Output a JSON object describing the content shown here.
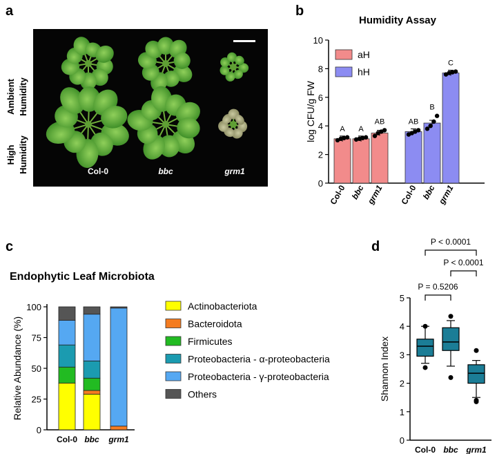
{
  "panels": {
    "a": {
      "letter": "a",
      "row_labels": [
        "Ambient\nHumidity",
        "High\nHumidity"
      ],
      "genotypes": [
        "Col-0",
        "bbc",
        "grm1"
      ],
      "scale_bar": true
    },
    "b": {
      "letter": "b",
      "title": "Humidity Assay"
    },
    "c": {
      "letter": "c",
      "title": "Endophytic Leaf Microbiota"
    },
    "d": {
      "letter": "d",
      "comparisons": [
        {
          "label": "P < 0.0001",
          "from": "Col-0",
          "to": "grm1"
        },
        {
          "label": "P < 0.0001",
          "from": "bbc",
          "to": "grm1"
        },
        {
          "label": "P = 0.5206",
          "from": "Col-0",
          "to": "bbc"
        }
      ]
    }
  },
  "chart_data": [
    {
      "panel": "b",
      "type": "bar",
      "title": "Humidity Assay",
      "xlabel": "",
      "ylabel": "log CFU/g FW",
      "ylim": [
        0,
        10
      ],
      "yticks": [
        0,
        2,
        4,
        6,
        8,
        10
      ],
      "categories": [
        "Col-0",
        "bbc",
        "grm1"
      ],
      "legend_position": "top-left",
      "series": [
        {
          "name": "aH",
          "color": "#f28b8b",
          "values": [
            3.1,
            3.1,
            3.5
          ],
          "letters": [
            "A",
            "A",
            "AB"
          ],
          "points": [
            [
              3.0,
              3.1,
              3.15,
              3.2
            ],
            [
              3.05,
              3.1,
              3.15,
              3.2
            ],
            [
              3.3,
              3.5,
              3.6,
              3.7
            ]
          ]
        },
        {
          "name": "hH",
          "color": "#8c8cf2",
          "values": [
            3.6,
            4.2,
            7.7
          ],
          "letters": [
            "AB",
            "B",
            "C"
          ],
          "points": [
            [
              3.4,
              3.5,
              3.6,
              3.7
            ],
            [
              3.8,
              4.0,
              4.3,
              4.7
            ],
            [
              7.6,
              7.7,
              7.75,
              7.8
            ]
          ]
        }
      ]
    },
    {
      "panel": "c",
      "type": "bar",
      "stacked": true,
      "title": "Endophytic Leaf Microbiota",
      "xlabel": "",
      "ylabel": "Relative Abundance (%)",
      "ylim": [
        0,
        100
      ],
      "yticks": [
        0,
        25,
        50,
        75,
        100
      ],
      "categories": [
        "Col-0",
        "bbc",
        "grm1"
      ],
      "legend_position": "right",
      "series": [
        {
          "name": "Actinobacteriota",
          "color": "#ffff00",
          "values": [
            38,
            29,
            0
          ]
        },
        {
          "name": "Bacteroidota",
          "color": "#f47c20",
          "values": [
            0,
            3,
            3
          ]
        },
        {
          "name": "Firmicutes",
          "color": "#22bb22",
          "values": [
            13,
            10,
            0
          ]
        },
        {
          "name": "Proteobacteria - α-proteobacteria",
          "color": "#1b9bb0",
          "values": [
            18,
            14,
            0
          ]
        },
        {
          "name": "Proteobacteria - γ-proteobacteria",
          "color": "#55a8f2",
          "values": [
            20,
            38,
            96
          ]
        },
        {
          "name": "Others",
          "color": "#555555",
          "values": [
            11,
            6,
            1
          ]
        }
      ]
    },
    {
      "panel": "d",
      "type": "box",
      "title": "",
      "xlabel": "",
      "ylabel": "Shannon Index",
      "ylim": [
        0,
        5
      ],
      "yticks": [
        0,
        1,
        2,
        3,
        4,
        5
      ],
      "categories": [
        "Col-0",
        "bbc",
        "grm1"
      ],
      "box_color": "#1b7d96",
      "boxes": [
        {
          "min": 2.7,
          "q1": 2.95,
          "median": 3.3,
          "q3": 3.55,
          "max": 4.0,
          "outliers": [
            2.55,
            4.0
          ]
        },
        {
          "min": 2.6,
          "q1": 3.15,
          "median": 3.45,
          "q3": 3.95,
          "max": 4.2,
          "outliers": [
            2.2,
            4.35
          ]
        },
        {
          "min": 1.5,
          "q1": 2.0,
          "median": 2.35,
          "q3": 2.65,
          "max": 2.8,
          "outliers": [
            1.35,
            1.4,
            3.15
          ]
        }
      ]
    }
  ]
}
